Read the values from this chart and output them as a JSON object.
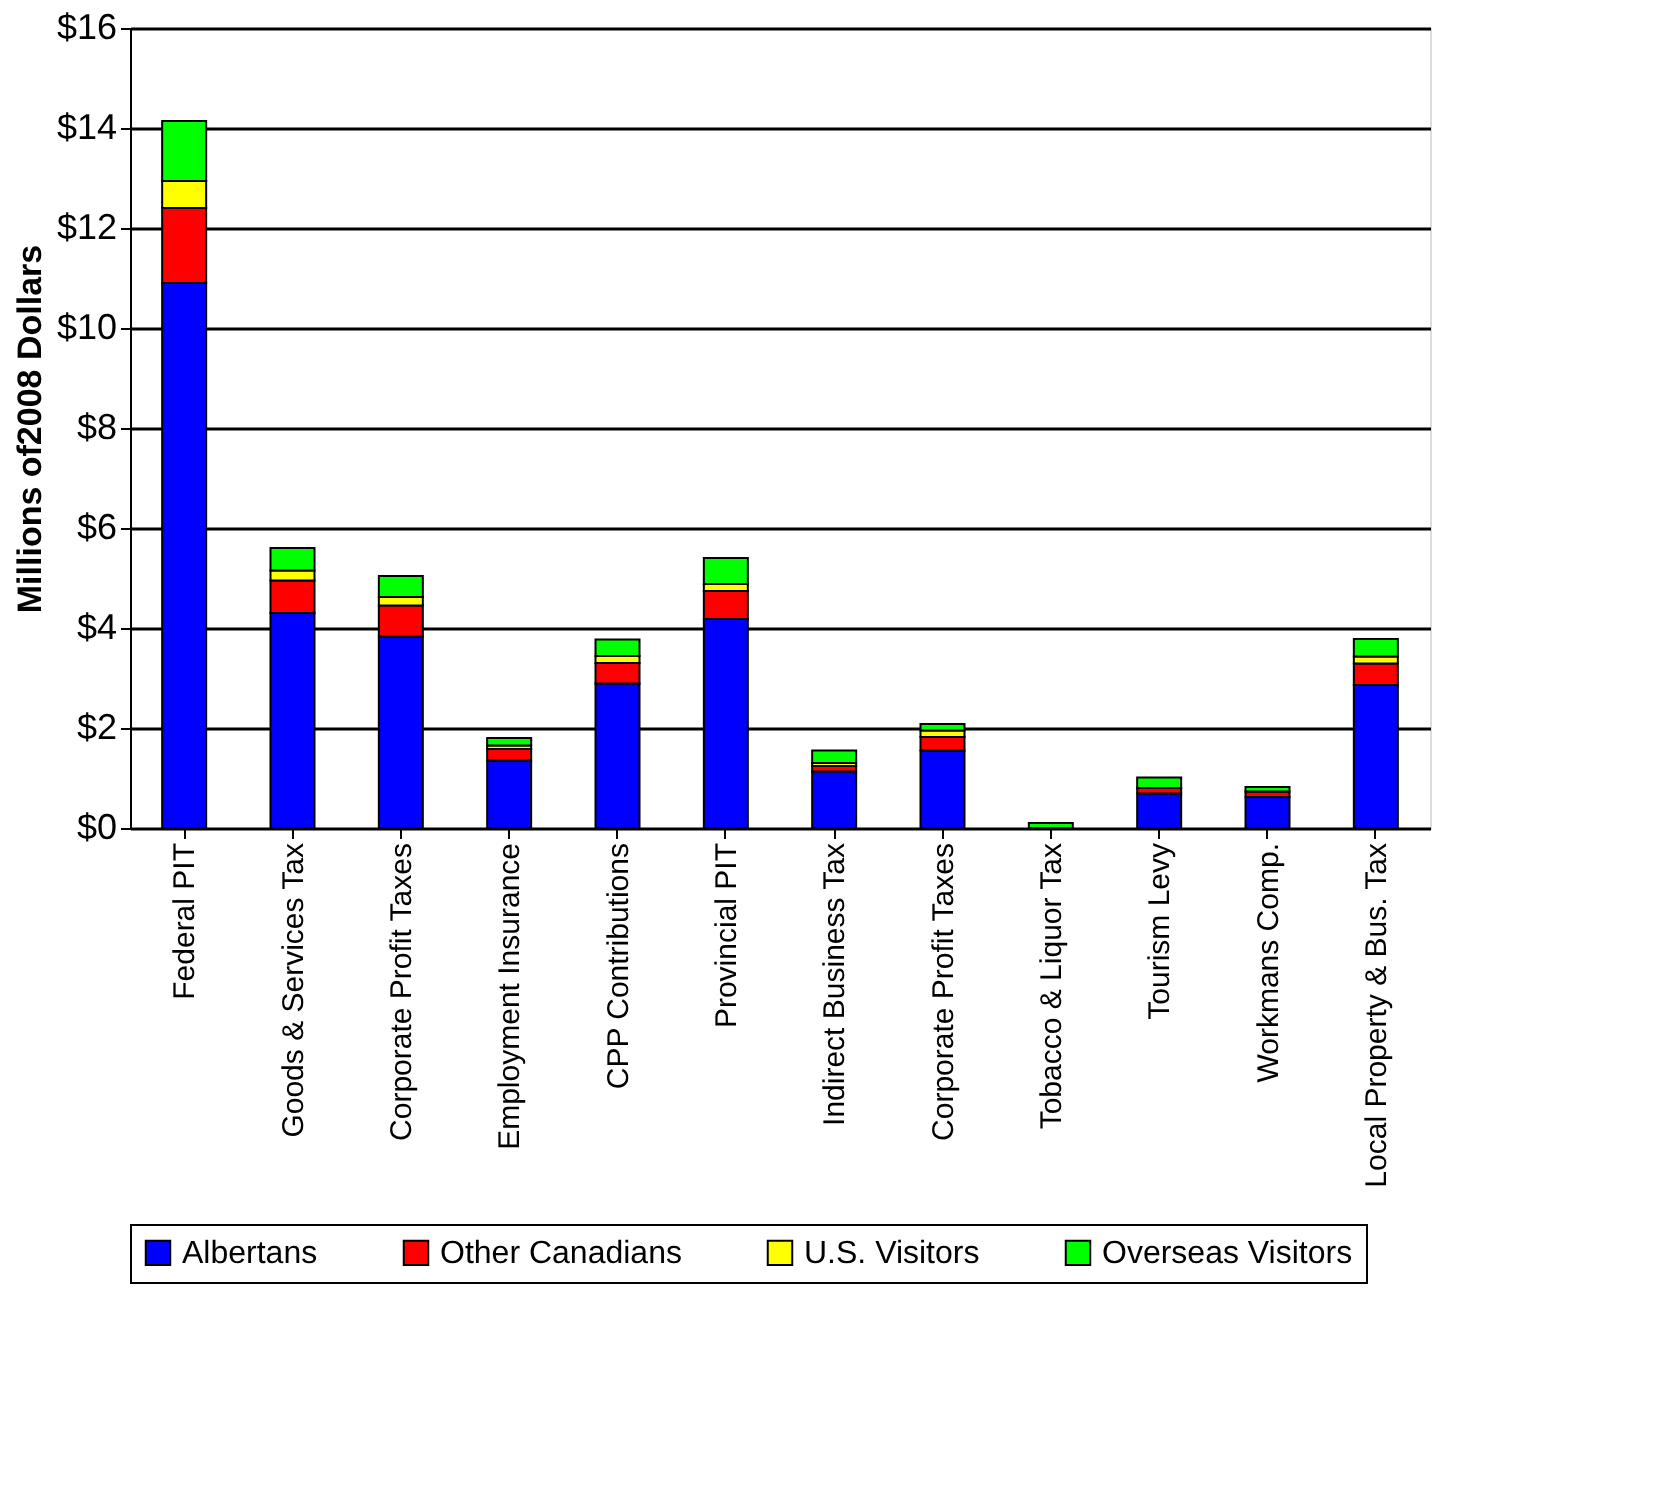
{
  "chart_data": {
    "type": "bar",
    "stacked": true,
    "ylabel": "Millions of2008 Dollars",
    "categories": [
      "Federal PIT",
      "Goods & Services Tax",
      "Corporate Profit Taxes",
      "Employment Insurance",
      "CPP Contributions",
      "Provincial PIT",
      "Indirect Business Tax",
      "Corporate Profit Taxes",
      "Tobacco & Liquor Tax",
      "Tourism Levy",
      "Workmans Comp.",
      "Local Property & Bus. Tax"
    ],
    "series": [
      {
        "name": "Albertans",
        "color": "#0000ff",
        "values": [
          10.9,
          4.3,
          3.83,
          1.35,
          2.89,
          4.18,
          1.13,
          1.55,
          null,
          0.69,
          0.62,
          2.86
        ]
      },
      {
        "name": "Other Canadians",
        "color": "#ff0000",
        "values": [
          1.5,
          0.65,
          0.62,
          0.23,
          0.41,
          0.56,
          0.11,
          0.27,
          null,
          0.11,
          0.11,
          0.43
        ]
      },
      {
        "name": "U.S. Visitors",
        "color": "#ffff00",
        "values": [
          0.54,
          0.2,
          0.17,
          0.07,
          0.14,
          0.14,
          0.06,
          0.13,
          null,
          null,
          null,
          0.14
        ]
      },
      {
        "name": "Overseas Visitors",
        "color": "#00ff00",
        "values": [
          1.2,
          0.45,
          0.42,
          0.15,
          0.33,
          0.52,
          0.25,
          0.13,
          0.1,
          0.21,
          0.09,
          0.35
        ]
      }
    ],
    "ylim": [
      0,
      16
    ],
    "yticks": [
      {
        "value": 0,
        "label": "$0"
      },
      {
        "value": 2,
        "label": "$2"
      },
      {
        "value": 4,
        "label": "$4"
      },
      {
        "value": 6,
        "label": "$6"
      },
      {
        "value": 8,
        "label": "$8"
      },
      {
        "value": 10,
        "label": "$10"
      },
      {
        "value": 12,
        "label": "$12"
      },
      {
        "value": 14,
        "label": "$14"
      },
      {
        "value": 16,
        "label": "$16"
      }
    ],
    "grid": "y",
    "legend": "bottom"
  }
}
